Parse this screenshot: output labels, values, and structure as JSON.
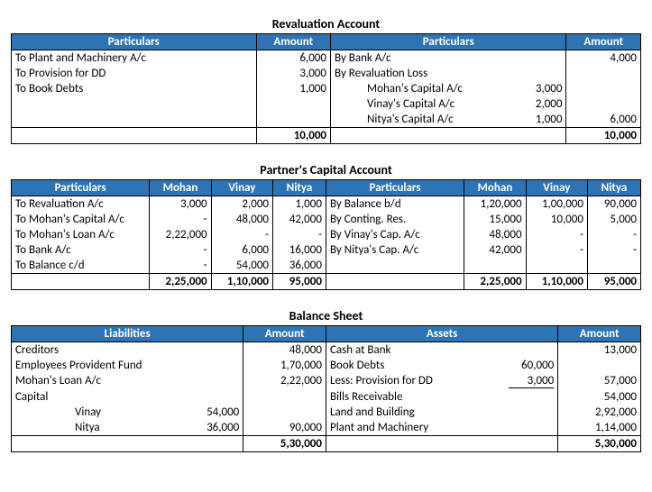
{
  "revaluation": {
    "title": "Revaluation Account",
    "headers": {
      "particulars": "Particulars",
      "amount": "Amount"
    },
    "debit": [
      {
        "desc": "To Plant and Machinery A/c",
        "amt": "6,000"
      },
      {
        "desc": "To Provision for DD",
        "amt": "3,000"
      },
      {
        "desc": "To Book Debts",
        "amt": "1,000"
      }
    ],
    "credit": [
      {
        "desc": "By Bank A/c",
        "amt": "4,000"
      },
      {
        "desc": "By Revaluation Loss",
        "amt": ""
      }
    ],
    "credit_sub": [
      {
        "desc": "Mohan's Capital A/c",
        "sub": "3,000"
      },
      {
        "desc": "Vinay's Capital A/c",
        "sub": "2,000"
      },
      {
        "desc": "Nitya's Capital A/c",
        "sub": "1,000",
        "amt": "6,000"
      }
    ],
    "total": "10,000"
  },
  "capital": {
    "title": "Partner's Capital Account",
    "headers": {
      "particulars": "Particulars",
      "mohan": "Mohan",
      "vinay": "Vinay",
      "nitya": "Nitya"
    },
    "debit": [
      {
        "desc": "To Revaluation A/c",
        "m": "3,000",
        "v": "2,000",
        "n": "1,000"
      },
      {
        "desc": "To Mohan's Capital A/c",
        "m": "-",
        "v": "48,000",
        "n": "42,000"
      },
      {
        "desc": "To Mohan's Loan A/c",
        "m": "2,22,000",
        "v": "-",
        "n": "-"
      },
      {
        "desc": "To Bank A/c",
        "m": "-",
        "v": "6,000",
        "n": "16,000"
      },
      {
        "desc": "To Balance c/d",
        "m": "-",
        "v": "54,000",
        "n": "36,000"
      }
    ],
    "credit": [
      {
        "desc": "By Balance b/d",
        "m": "1,20,000",
        "v": "1,00,000",
        "n": "90,000"
      },
      {
        "desc": "By Conting. Res.",
        "m": "15,000",
        "v": "10,000",
        "n": "5,000"
      },
      {
        "desc": "By Vinay's Cap. A/c",
        "m": "48,000",
        "v": "-",
        "n": "-"
      },
      {
        "desc": "By Nitya's Cap. A/c",
        "m": "42,000",
        "v": "-",
        "n": "-"
      }
    ],
    "totals": {
      "dm": "2,25,000",
      "dv": "1,10,000",
      "dn": "95,000",
      "cm": "2,25,000",
      "cv": "1,10,000",
      "cn": "95,000"
    }
  },
  "balance": {
    "title": "Balance Sheet",
    "headers": {
      "liab": "Liabilities",
      "amount": "Amount",
      "assets": "Assets"
    },
    "liab": [
      {
        "desc": "Creditors",
        "amt": "48,000"
      },
      {
        "desc": "Employees Provident Fund",
        "amt": "1,70,000"
      },
      {
        "desc": "Mohan's Loan A/c",
        "amt": "2,22,000"
      },
      {
        "desc": "Capital",
        "amt": ""
      }
    ],
    "liab_sub": [
      {
        "name": "Vinay",
        "val": "54,000",
        "amt": ""
      },
      {
        "name": "Nitya",
        "val": "36,000",
        "amt": "90,000"
      }
    ],
    "assets": [
      {
        "desc": "Cash at Bank",
        "sub": "",
        "amt": "13,000"
      },
      {
        "desc": "Book Debts",
        "sub": "60,000",
        "amt": ""
      },
      {
        "desc": "Less: Provision for DD",
        "sub": "3,000",
        "amt": "57,000",
        "under": true
      },
      {
        "desc": "Bills Receivable",
        "sub": "",
        "amt": "54,000"
      },
      {
        "desc": "Land and Building",
        "sub": "",
        "amt": "2,92,000"
      },
      {
        "desc": "Plant and Machinery",
        "sub": "",
        "amt": "1,14,000"
      }
    ],
    "total": "5,30,000"
  }
}
